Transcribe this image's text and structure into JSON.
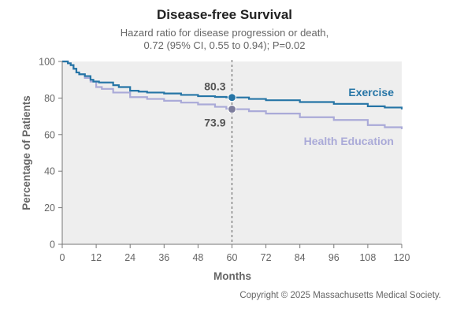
{
  "colors": {
    "exercise": "#2675a6",
    "health_education": "#aaaad8",
    "plot_background": "#eeeeee",
    "axis": "#777777"
  },
  "chart_data": {
    "type": "line",
    "title": "Disease-free Survival",
    "subtitle_lines": [
      "Hazard ratio for disease progression or death,",
      "0.72 (95% CI, 0.55 to 0.94); P=0.02"
    ],
    "xlabel": "Months",
    "ylabel": "Percentage of Patients",
    "xlim": [
      0,
      120
    ],
    "ylim": [
      0,
      100
    ],
    "xticks": [
      0,
      12,
      24,
      36,
      48,
      60,
      72,
      84,
      96,
      108,
      120
    ],
    "yticks": [
      0,
      20,
      40,
      60,
      80,
      100
    ],
    "grid": false,
    "reference_line_x": 60,
    "series": [
      {
        "name": "Exercise",
        "color_key": "exercise",
        "x": [
          0,
          2,
          3,
          4,
          5,
          6,
          8,
          10,
          11,
          12,
          13,
          18,
          20,
          24,
          27,
          30,
          36,
          42,
          48,
          54,
          58,
          60,
          66,
          72,
          84,
          96,
          108,
          114,
          120
        ],
        "y": [
          100,
          99,
          98,
          96,
          94,
          93,
          92,
          90,
          89,
          89,
          88.5,
          87,
          86,
          84,
          83.5,
          83,
          82.5,
          81.7,
          81,
          80.6,
          80.4,
          80.3,
          79.5,
          78.8,
          77.8,
          76.8,
          75.5,
          74.8,
          73.8
        ]
      },
      {
        "name": "Health Education",
        "color_key": "health_education",
        "x": [
          0,
          2,
          3,
          4,
          5,
          6,
          8,
          10,
          12,
          14,
          18,
          24,
          30,
          36,
          42,
          48,
          54,
          58,
          60,
          66,
          72,
          84,
          96,
          108,
          114,
          120
        ],
        "y": [
          100,
          99,
          98,
          96,
          94,
          93,
          91,
          89,
          86,
          85,
          83,
          80.5,
          79.5,
          78.5,
          77.5,
          76.5,
          75.2,
          74.2,
          73.9,
          72.8,
          71.5,
          69.5,
          68,
          65.2,
          64,
          63
        ]
      }
    ],
    "annotations": [
      {
        "x": 60,
        "y": 80.3,
        "text": "80.3",
        "series": "Exercise"
      },
      {
        "x": 60,
        "y": 73.9,
        "text": "73.9",
        "series": "Health Education"
      }
    ]
  },
  "footer": {
    "copyright": "Copyright © 2025 Massachusetts Medical Society."
  }
}
